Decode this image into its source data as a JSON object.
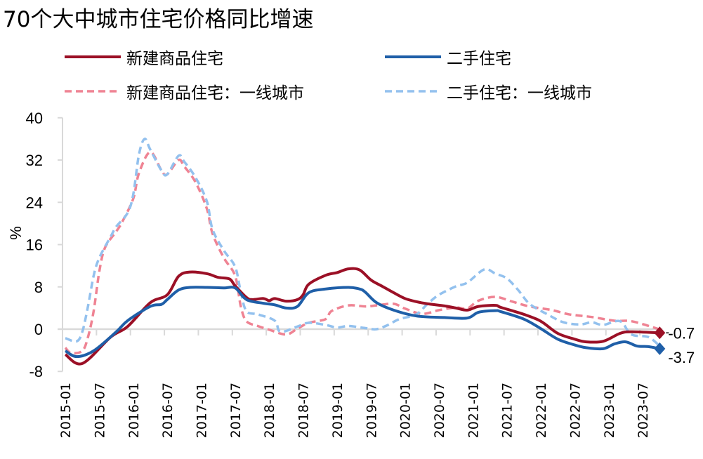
{
  "chart_data": {
    "type": "line",
    "title": "70个大中城市住宅价格同比增速",
    "xlabel": "",
    "ylabel": "%",
    "ylim": [
      -8,
      40
    ],
    "yticks": [
      "-8",
      "0",
      "8",
      "16",
      "24",
      "32",
      "40"
    ],
    "x_range": [
      "2015-01",
      "2023-10"
    ],
    "xtick_labels": [
      "2015-01",
      "2015-07",
      "2016-01",
      "2016-07",
      "2017-01",
      "2017-07",
      "2018-01",
      "2018-07",
      "2019-01",
      "2019-07",
      "2020-01",
      "2020-07",
      "2021-01",
      "2021-07",
      "2022-01",
      "2022-07",
      "2023-01",
      "2023-07"
    ],
    "grid": false,
    "legend_position": "top",
    "series": [
      {
        "name": "新建商品住宅",
        "color": "#9b1026",
        "style": "solid",
        "end_label": "-0.7",
        "points": [
          [
            "2015-01",
            -4.8
          ],
          [
            "2015-04",
            -6.5
          ],
          [
            "2015-09",
            -1.5
          ],
          [
            "2015-12",
            0.5
          ],
          [
            "2016-04",
            5.0
          ],
          [
            "2016-07",
            6.5
          ],
          [
            "2016-09",
            10.0
          ],
          [
            "2016-11",
            10.8
          ],
          [
            "2017-02",
            10.5
          ],
          [
            "2017-04",
            9.8
          ],
          [
            "2017-06",
            9.5
          ],
          [
            "2017-07",
            8.2
          ],
          [
            "2017-09",
            6.0
          ],
          [
            "2017-10",
            5.6
          ],
          [
            "2017-12",
            5.8
          ],
          [
            "2018-01",
            5.4
          ],
          [
            "2018-02",
            5.8
          ],
          [
            "2018-04",
            5.3
          ],
          [
            "2018-06",
            5.6
          ],
          [
            "2018-07",
            6.5
          ],
          [
            "2018-08",
            8.5
          ],
          [
            "2018-11",
            10.2
          ],
          [
            "2019-01",
            10.7
          ],
          [
            "2019-03",
            11.4
          ],
          [
            "2019-05",
            11.2
          ],
          [
            "2019-07",
            9.3
          ],
          [
            "2019-09",
            8.1
          ],
          [
            "2019-11",
            6.9
          ],
          [
            "2020-01",
            5.8
          ],
          [
            "2020-03",
            5.2
          ],
          [
            "2020-05",
            4.8
          ],
          [
            "2020-08",
            4.4
          ],
          [
            "2020-10",
            4.0
          ],
          [
            "2020-12",
            3.6
          ],
          [
            "2021-02",
            4.3
          ],
          [
            "2021-05",
            4.5
          ],
          [
            "2021-06",
            4.1
          ],
          [
            "2021-10",
            2.8
          ],
          [
            "2022-01",
            1.5
          ],
          [
            "2022-04",
            -0.8
          ],
          [
            "2022-07",
            -1.9
          ],
          [
            "2022-09",
            -2.4
          ],
          [
            "2022-12",
            -2.3
          ],
          [
            "2023-03",
            -0.8
          ],
          [
            "2023-05",
            -0.5
          ],
          [
            "2023-10",
            -0.7
          ]
        ]
      },
      {
        "name": "二手住宅",
        "color": "#1f5fa8",
        "style": "solid",
        "end_label": "-3.7",
        "points": [
          [
            "2015-01",
            -4.1
          ],
          [
            "2015-03",
            -5.2
          ],
          [
            "2015-06",
            -4.1
          ],
          [
            "2015-10",
            -0.5
          ],
          [
            "2015-12",
            1.6
          ],
          [
            "2016-04",
            4.3
          ],
          [
            "2016-06",
            4.7
          ],
          [
            "2016-07",
            5.6
          ],
          [
            "2016-09",
            7.4
          ],
          [
            "2016-11",
            7.9
          ],
          [
            "2017-02",
            7.9
          ],
          [
            "2017-05",
            7.8
          ],
          [
            "2017-07",
            7.8
          ],
          [
            "2017-09",
            5.6
          ],
          [
            "2017-12",
            4.9
          ],
          [
            "2018-02",
            4.6
          ],
          [
            "2018-04",
            4.0
          ],
          [
            "2018-06",
            4.3
          ],
          [
            "2018-08",
            6.9
          ],
          [
            "2018-11",
            7.6
          ],
          [
            "2019-03",
            7.9
          ],
          [
            "2019-05",
            7.6
          ],
          [
            "2019-06",
            7.0
          ],
          [
            "2019-08",
            5.0
          ],
          [
            "2019-11",
            3.6
          ],
          [
            "2020-03",
            2.5
          ],
          [
            "2020-08",
            2.2
          ],
          [
            "2020-12",
            2.1
          ],
          [
            "2021-02",
            3.2
          ],
          [
            "2021-05",
            3.5
          ],
          [
            "2021-06",
            3.3
          ],
          [
            "2021-10",
            1.9
          ],
          [
            "2022-01",
            0.1
          ],
          [
            "2022-04",
            -1.9
          ],
          [
            "2022-07",
            -3.0
          ],
          [
            "2022-09",
            -3.5
          ],
          [
            "2022-12",
            -3.7
          ],
          [
            "2023-02",
            -2.8
          ],
          [
            "2023-04",
            -2.4
          ],
          [
            "2023-06",
            -3.2
          ],
          [
            "2023-08",
            -3.3
          ],
          [
            "2023-10",
            -3.7
          ]
        ]
      },
      {
        "name": "新建商品住宅：一线城市",
        "color": "#ef8393",
        "style": "dashed",
        "points": [
          [
            "2015-01",
            -3.5
          ],
          [
            "2015-02",
            -4.5
          ],
          [
            "2015-04",
            -4.1
          ],
          [
            "2015-05",
            -1.5
          ],
          [
            "2015-06",
            3.4
          ],
          [
            "2015-07",
            10.9
          ],
          [
            "2015-08",
            15.4
          ],
          [
            "2015-10",
            18.5
          ],
          [
            "2015-11",
            20.2
          ],
          [
            "2016-01",
            24.7
          ],
          [
            "2016-02",
            29.5
          ],
          [
            "2016-04",
            33.5
          ],
          [
            "2016-06",
            30.0
          ],
          [
            "2016-07",
            29.3
          ],
          [
            "2016-09",
            32.0
          ],
          [
            "2016-10",
            30.8
          ],
          [
            "2016-12",
            27.8
          ],
          [
            "2017-02",
            22.8
          ],
          [
            "2017-03",
            18.1
          ],
          [
            "2017-05",
            13.5
          ],
          [
            "2017-07",
            10.1
          ],
          [
            "2017-08",
            4.3
          ],
          [
            "2017-09",
            1.5
          ],
          [
            "2017-11",
            0.6
          ],
          [
            "2018-01",
            -0.1
          ],
          [
            "2018-04",
            -1.0
          ],
          [
            "2018-06",
            0.1
          ],
          [
            "2018-08",
            1.2
          ],
          [
            "2018-11",
            1.9
          ],
          [
            "2018-12",
            3.4
          ],
          [
            "2019-03",
            4.5
          ],
          [
            "2019-06",
            4.3
          ],
          [
            "2019-08",
            4.5
          ],
          [
            "2019-11",
            4.8
          ],
          [
            "2020-01",
            3.9
          ],
          [
            "2020-04",
            2.9
          ],
          [
            "2020-07",
            3.6
          ],
          [
            "2020-10",
            4.1
          ],
          [
            "2020-12",
            3.9
          ],
          [
            "2021-02",
            5.4
          ],
          [
            "2021-05",
            6.1
          ],
          [
            "2021-08",
            5.2
          ],
          [
            "2021-11",
            4.3
          ],
          [
            "2022-03",
            3.6
          ],
          [
            "2022-06",
            2.8
          ],
          [
            "2022-10",
            2.3
          ],
          [
            "2023-02",
            1.6
          ],
          [
            "2023-05",
            1.5
          ],
          [
            "2023-09",
            0.3
          ],
          [
            "2023-10",
            -0.1
          ]
        ]
      },
      {
        "name": "二手住宅：一线城市",
        "color": "#93c1ee",
        "style": "dashed",
        "points": [
          [
            "2015-01",
            -1.7
          ],
          [
            "2015-03",
            -2.3
          ],
          [
            "2015-04",
            -0.5
          ],
          [
            "2015-05",
            4.3
          ],
          [
            "2015-06",
            10.1
          ],
          [
            "2015-07",
            13.5
          ],
          [
            "2015-09",
            17.5
          ],
          [
            "2015-10",
            19.4
          ],
          [
            "2015-12",
            22.0
          ],
          [
            "2016-01",
            25.5
          ],
          [
            "2016-02",
            33.0
          ],
          [
            "2016-03",
            36.0
          ],
          [
            "2016-04",
            34.0
          ],
          [
            "2016-06",
            30.0
          ],
          [
            "2016-07",
            29.3
          ],
          [
            "2016-09",
            32.8
          ],
          [
            "2016-10",
            31.7
          ],
          [
            "2016-12",
            28.7
          ],
          [
            "2017-02",
            24.2
          ],
          [
            "2017-03",
            18.9
          ],
          [
            "2017-05",
            14.9
          ],
          [
            "2017-07",
            11.8
          ],
          [
            "2017-08",
            7.0
          ],
          [
            "2017-09",
            3.4
          ],
          [
            "2017-11",
            2.8
          ],
          [
            "2018-02",
            1.6
          ],
          [
            "2018-03",
            -0.5
          ],
          [
            "2018-06",
            0.5
          ],
          [
            "2018-08",
            1.2
          ],
          [
            "2018-11",
            0.8
          ],
          [
            "2019-01",
            0.3
          ],
          [
            "2019-03",
            0.6
          ],
          [
            "2019-06",
            0.2
          ],
          [
            "2019-08",
            0.0
          ],
          [
            "2019-10",
            0.8
          ],
          [
            "2019-12",
            1.9
          ],
          [
            "2020-03",
            2.8
          ],
          [
            "2020-05",
            4.8
          ],
          [
            "2020-07",
            6.5
          ],
          [
            "2020-10",
            8.1
          ],
          [
            "2020-12",
            8.8
          ],
          [
            "2021-03",
            11.3
          ],
          [
            "2021-05",
            10.5
          ],
          [
            "2021-07",
            9.6
          ],
          [
            "2021-09",
            7.4
          ],
          [
            "2021-11",
            4.8
          ],
          [
            "2022-02",
            2.9
          ],
          [
            "2022-05",
            1.3
          ],
          [
            "2022-08",
            0.9
          ],
          [
            "2022-10",
            1.3
          ],
          [
            "2022-12",
            0.8
          ],
          [
            "2023-03",
            1.5
          ],
          [
            "2023-05",
            -1.0
          ],
          [
            "2023-08",
            -1.5
          ],
          [
            "2023-10",
            -3.2
          ]
        ]
      }
    ]
  }
}
